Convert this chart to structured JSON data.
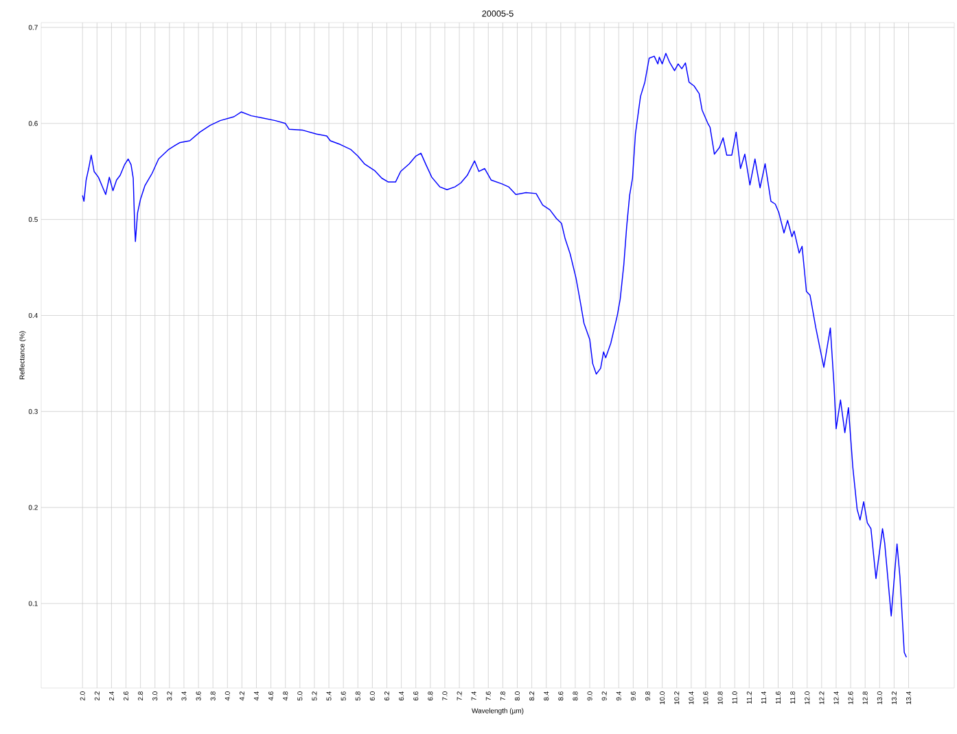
{
  "chart_data": {
    "type": "line",
    "title": "20005-5",
    "xlabel": "Wavelength (µm)",
    "ylabel": "Reflectance (%)",
    "color": "#0000ff",
    "grid": true,
    "xlim": [
      1.43,
      14.03
    ],
    "ylim": [
      0.012,
      0.705
    ],
    "xticks": [
      {
        "value": 2.0,
        "label": "2.0"
      },
      {
        "value": 2.2,
        "label": "2.2"
      },
      {
        "value": 2.4,
        "label": "2.4"
      },
      {
        "value": 2.6,
        "label": "2.6"
      },
      {
        "value": 2.8,
        "label": "2.8"
      },
      {
        "value": 3.0,
        "label": "3.0"
      },
      {
        "value": 3.2,
        "label": "3.2"
      },
      {
        "value": 3.4,
        "label": "3.4"
      },
      {
        "value": 3.6,
        "label": "3.6"
      },
      {
        "value": 3.8,
        "label": "3.8"
      },
      {
        "value": 4.0,
        "label": "4.0"
      },
      {
        "value": 4.2,
        "label": "4.2"
      },
      {
        "value": 4.4,
        "label": "4.4"
      },
      {
        "value": 4.6,
        "label": "4.6"
      },
      {
        "value": 4.8,
        "label": "4.8"
      },
      {
        "value": 5.0,
        "label": "5.0"
      },
      {
        "value": 5.2,
        "label": "5.2"
      },
      {
        "value": 5.4,
        "label": "5.4"
      },
      {
        "value": 5.6,
        "label": "5.6"
      },
      {
        "value": 5.8,
        "label": "5.8"
      },
      {
        "value": 6.0,
        "label": "6.0"
      },
      {
        "value": 6.2,
        "label": "6.2"
      },
      {
        "value": 6.4,
        "label": "6.4"
      },
      {
        "value": 6.6,
        "label": "6.6"
      },
      {
        "value": 6.8,
        "label": "6.8"
      },
      {
        "value": 7.0,
        "label": "7.0"
      },
      {
        "value": 7.2,
        "label": "7.2"
      },
      {
        "value": 7.4,
        "label": "7.4"
      },
      {
        "value": 7.6,
        "label": "7.6"
      },
      {
        "value": 7.8,
        "label": "7.8"
      },
      {
        "value": 8.0,
        "label": "8.0"
      },
      {
        "value": 8.2,
        "label": "8.2"
      },
      {
        "value": 8.4,
        "label": "8.4"
      },
      {
        "value": 8.6,
        "label": "8.6"
      },
      {
        "value": 8.8,
        "label": "8.8"
      },
      {
        "value": 9.0,
        "label": "9.0"
      },
      {
        "value": 9.2,
        "label": "9.2"
      },
      {
        "value": 9.4,
        "label": "9.4"
      },
      {
        "value": 9.6,
        "label": "9.6"
      },
      {
        "value": 9.8,
        "label": "9.8"
      },
      {
        "value": 10.0,
        "label": "10.0"
      },
      {
        "value": 10.2,
        "label": "10.2"
      },
      {
        "value": 10.4,
        "label": "10.4"
      },
      {
        "value": 10.6,
        "label": "10.6"
      },
      {
        "value": 10.8,
        "label": "10.8"
      },
      {
        "value": 11.0,
        "label": "11.0"
      },
      {
        "value": 11.2,
        "label": "11.2"
      },
      {
        "value": 11.4,
        "label": "11.4"
      },
      {
        "value": 11.6,
        "label": "11.6"
      },
      {
        "value": 11.8,
        "label": "11.8"
      },
      {
        "value": 12.0,
        "label": "12.0"
      },
      {
        "value": 12.2,
        "label": "12.2"
      },
      {
        "value": 12.4,
        "label": "12.4"
      },
      {
        "value": 12.6,
        "label": "12.6"
      },
      {
        "value": 12.8,
        "label": "12.8"
      },
      {
        "value": 13.0,
        "label": "13.0"
      },
      {
        "value": 13.2,
        "label": "13.2"
      },
      {
        "value": 13.4,
        "label": "13.4"
      }
    ],
    "yticks": [
      0.1,
      0.2,
      0.3,
      0.4,
      0.5,
      0.6,
      0.7
    ],
    "x": [
      2.0,
      2.02,
      2.05,
      2.085,
      2.12,
      2.16,
      2.22,
      2.27,
      2.32,
      2.37,
      2.42,
      2.47,
      2.52,
      2.58,
      2.63,
      2.67,
      2.7,
      2.72,
      2.73,
      2.76,
      2.8,
      2.86,
      2.96,
      3.05,
      3.19,
      3.34,
      3.48,
      3.62,
      3.76,
      3.9,
      4.09,
      4.19,
      4.33,
      4.47,
      4.66,
      4.8,
      4.85,
      5.04,
      5.23,
      5.37,
      5.42,
      5.56,
      5.7,
      5.8,
      5.89,
      6.03,
      6.13,
      6.22,
      6.32,
      6.39,
      6.51,
      6.6,
      6.67,
      6.74,
      6.82,
      6.93,
      7.03,
      7.14,
      7.22,
      7.31,
      7.41,
      7.47,
      7.55,
      7.64,
      7.79,
      7.88,
      7.98,
      8.12,
      8.26,
      8.35,
      8.45,
      8.54,
      8.61,
      8.66,
      8.73,
      8.81,
      8.87,
      8.92,
      9.0,
      9.04,
      9.09,
      9.15,
      9.19,
      9.22,
      9.29,
      9.38,
      9.42,
      9.47,
      9.51,
      9.55,
      9.59,
      9.63,
      9.7,
      9.76,
      9.82,
      9.89,
      9.94,
      9.96,
      10.0,
      10.05,
      10.1,
      10.17,
      10.22,
      10.27,
      10.32,
      10.37,
      10.44,
      10.51,
      10.55,
      10.63,
      10.66,
      10.72,
      10.79,
      10.84,
      10.89,
      10.96,
      11.02,
      11.08,
      11.14,
      11.21,
      11.28,
      11.35,
      11.42,
      11.5,
      11.56,
      11.61,
      11.68,
      11.73,
      11.79,
      11.82,
      11.89,
      11.93,
      11.99,
      12.04,
      12.12,
      12.23,
      12.32,
      12.37,
      12.4,
      12.46,
      12.52,
      12.57,
      12.63,
      12.69,
      12.73,
      12.78,
      12.83,
      12.88,
      12.95,
      13.04,
      13.07,
      13.16,
      13.24,
      13.28,
      13.34,
      13.37
    ],
    "values": [
      0.525,
      0.519,
      0.541,
      0.553,
      0.567,
      0.55,
      0.544,
      0.535,
      0.526,
      0.544,
      0.53,
      0.541,
      0.546,
      0.557,
      0.563,
      0.557,
      0.543,
      0.493,
      0.477,
      0.507,
      0.521,
      0.535,
      0.548,
      0.563,
      0.573,
      0.58,
      0.582,
      0.591,
      0.598,
      0.603,
      0.607,
      0.612,
      0.608,
      0.606,
      0.603,
      0.6,
      0.594,
      0.593,
      0.589,
      0.587,
      0.582,
      0.578,
      0.573,
      0.566,
      0.558,
      0.551,
      0.543,
      0.539,
      0.539,
      0.55,
      0.558,
      0.566,
      0.569,
      0.557,
      0.544,
      0.534,
      0.531,
      0.534,
      0.538,
      0.546,
      0.561,
      0.55,
      0.553,
      0.541,
      0.537,
      0.534,
      0.526,
      0.528,
      0.527,
      0.515,
      0.51,
      0.501,
      0.496,
      0.48,
      0.464,
      0.439,
      0.414,
      0.392,
      0.375,
      0.35,
      0.339,
      0.345,
      0.362,
      0.356,
      0.371,
      0.4,
      0.417,
      0.453,
      0.493,
      0.525,
      0.543,
      0.589,
      0.628,
      0.643,
      0.668,
      0.67,
      0.662,
      0.669,
      0.662,
      0.673,
      0.664,
      0.655,
      0.662,
      0.657,
      0.663,
      0.643,
      0.639,
      0.631,
      0.614,
      0.6,
      0.596,
      0.568,
      0.575,
      0.585,
      0.567,
      0.567,
      0.591,
      0.553,
      0.568,
      0.536,
      0.563,
      0.533,
      0.558,
      0.519,
      0.516,
      0.507,
      0.486,
      0.499,
      0.482,
      0.488,
      0.465,
      0.472,
      0.425,
      0.421,
      0.387,
      0.346,
      0.387,
      0.328,
      0.282,
      0.312,
      0.278,
      0.304,
      0.242,
      0.198,
      0.187,
      0.206,
      0.184,
      0.178,
      0.126,
      0.178,
      0.163,
      0.087,
      0.162,
      0.128,
      0.049,
      0.044
    ]
  }
}
